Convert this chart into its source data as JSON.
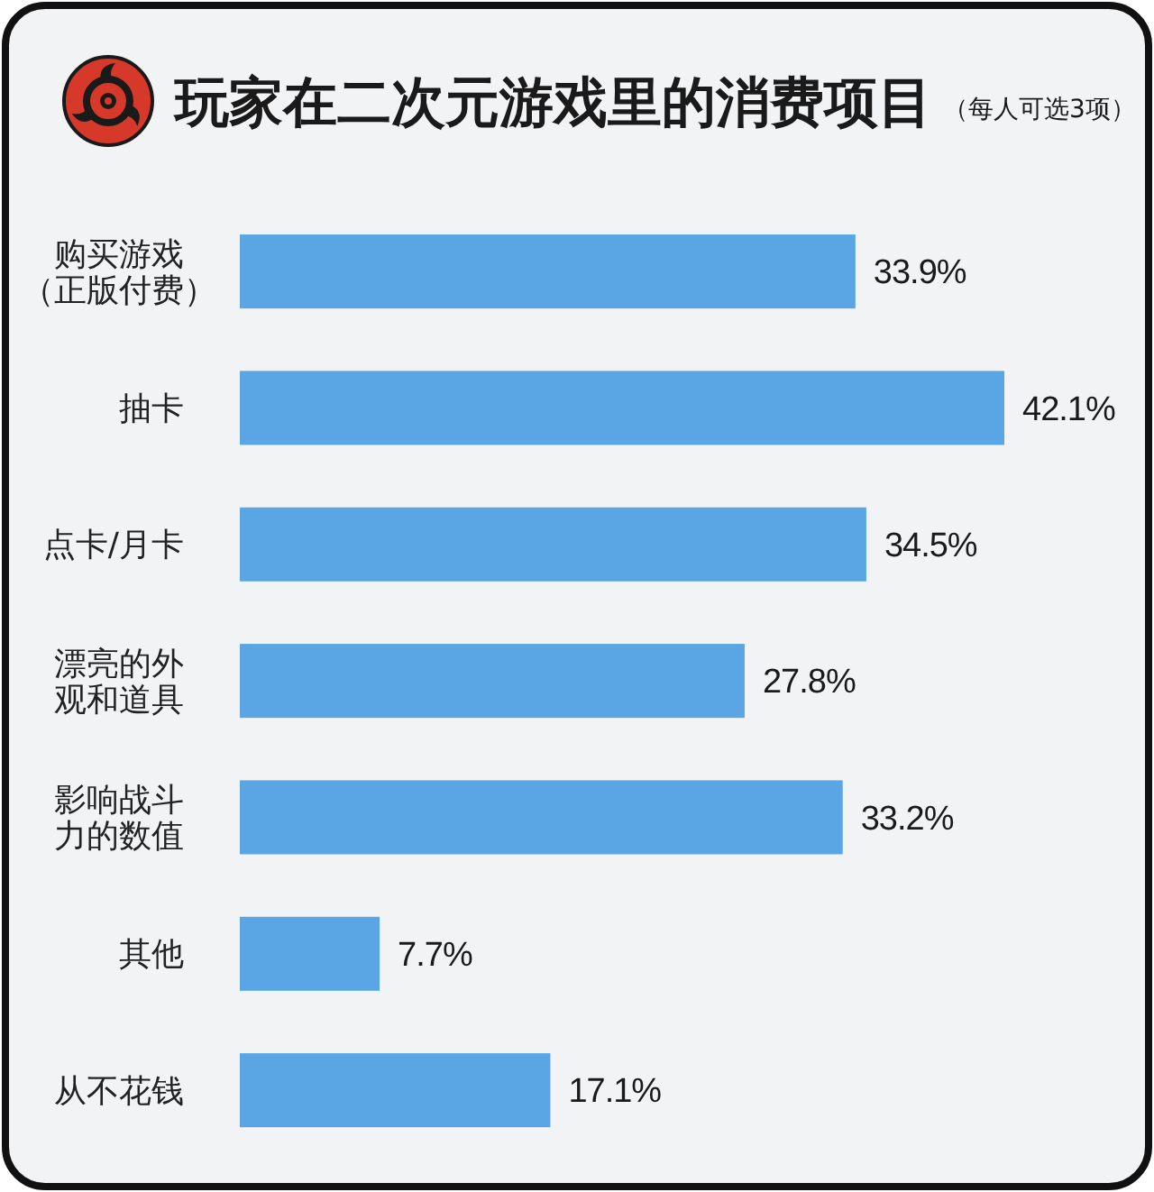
{
  "chart_data": {
    "type": "bar",
    "orientation": "horizontal",
    "title": "玩家在二次元游戏里的消费项目",
    "subtitle": "（每人可选3项）",
    "categories": [
      "购买游戏（正版付费）",
      "抽卡",
      "点卡/月卡",
      "漂亮的外观和道具",
      "影响战斗力的数值",
      "其他",
      "从不花钱"
    ],
    "values": [
      33.9,
      42.1,
      34.5,
      27.8,
      33.2,
      7.7,
      17.1
    ],
    "value_labels": [
      "33.9%",
      "42.1%",
      "34.5%",
      "27.8%",
      "33.2%",
      "7.7%",
      "17.1%"
    ],
    "color": "#5aa6e4"
  }
}
